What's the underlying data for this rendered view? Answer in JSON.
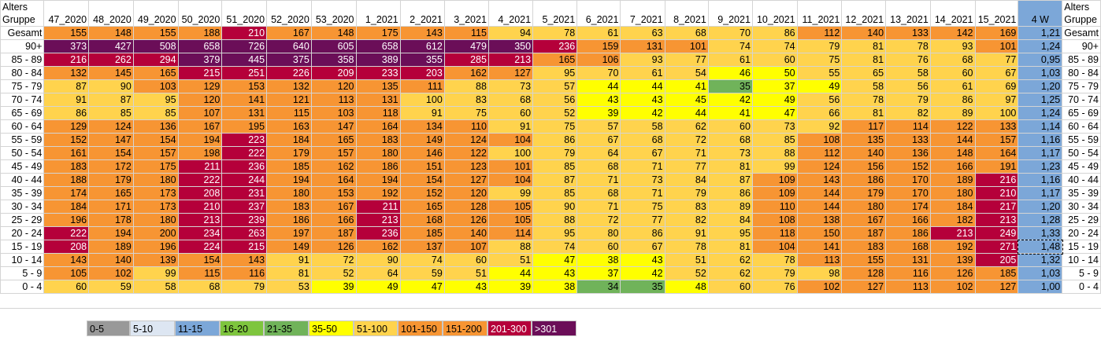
{
  "header_label": "Alters\nGruppe",
  "columns": [
    "2020_47",
    "2020_48",
    "2020_49",
    "2020_50",
    "2020_51",
    "2020_52",
    "2020_53",
    "2021_1",
    "2021_2",
    "2021_3",
    "2021_4",
    "2021_5",
    "2021_6",
    "2021_7",
    "2021_8",
    "2021_9",
    "2021_10",
    "2021_11",
    "2021_12",
    "2021_13",
    "2021_14",
    "2021_15"
  ],
  "four_week_label": "4 W",
  "rows": [
    {
      "label": "Gesamt",
      "values": [
        155,
        148,
        155,
        188,
        210,
        167,
        148,
        175,
        143,
        115,
        94,
        78,
        61,
        63,
        68,
        70,
        86,
        112,
        140,
        133,
        142,
        169
      ],
      "fw": "1,21"
    },
    {
      "label": "90+",
      "values": [
        373,
        427,
        508,
        658,
        726,
        640,
        605,
        658,
        612,
        479,
        350,
        236,
        159,
        131,
        101,
        74,
        74,
        79,
        81,
        78,
        93,
        101
      ],
      "fw": "1,24"
    },
    {
      "label": "85 - 89",
      "values": [
        216,
        262,
        294,
        379,
        445,
        375,
        358,
        389,
        355,
        285,
        213,
        165,
        106,
        93,
        77,
        61,
        60,
        75,
        81,
        76,
        68,
        77
      ],
      "fw": "0,95"
    },
    {
      "label": "80 - 84",
      "values": [
        132,
        145,
        165,
        215,
        251,
        226,
        209,
        233,
        203,
        162,
        127,
        95,
        70,
        61,
        54,
        46,
        50,
        55,
        65,
        58,
        60,
        67
      ],
      "fw": "1,03"
    },
    {
      "label": "75 - 79",
      "values": [
        87,
        90,
        103,
        129,
        153,
        132,
        120,
        135,
        111,
        88,
        73,
        57,
        44,
        44,
        41,
        35,
        37,
        49,
        58,
        56,
        61,
        69
      ],
      "fw": "1,20"
    },
    {
      "label": "70 - 74",
      "values": [
        91,
        87,
        95,
        120,
        141,
        121,
        113,
        131,
        100,
        83,
        68,
        56,
        43,
        43,
        45,
        42,
        49,
        56,
        78,
        79,
        86,
        97
      ],
      "fw": "1,25"
    },
    {
      "label": "65 - 69",
      "values": [
        86,
        85,
        85,
        107,
        131,
        115,
        103,
        118,
        91,
        75,
        60,
        52,
        39,
        42,
        44,
        41,
        47,
        66,
        81,
        82,
        89,
        100
      ],
      "fw": "1,24"
    },
    {
      "label": "60 - 64",
      "values": [
        129,
        124,
        136,
        167,
        195,
        163,
        147,
        164,
        134,
        110,
        91,
        75,
        57,
        58,
        62,
        60,
        73,
        92,
        117,
        114,
        122,
        133
      ],
      "fw": "1,14"
    },
    {
      "label": "55 - 59",
      "values": [
        152,
        147,
        154,
        194,
        223,
        184,
        165,
        183,
        149,
        124,
        104,
        86,
        67,
        68,
        72,
        68,
        85,
        108,
        135,
        133,
        144,
        157
      ],
      "fw": "1,16"
    },
    {
      "label": "50 - 54",
      "values": [
        161,
        154,
        157,
        198,
        222,
        179,
        157,
        180,
        146,
        122,
        100,
        79,
        64,
        67,
        71,
        73,
        88,
        112,
        140,
        136,
        148,
        164
      ],
      "fw": "1,17"
    },
    {
      "label": "45 - 49",
      "values": [
        183,
        172,
        175,
        211,
        236,
        185,
        162,
        186,
        151,
        123,
        101,
        85,
        68,
        71,
        77,
        81,
        99,
        124,
        156,
        152,
        166,
        191
      ],
      "fw": "1,23"
    },
    {
      "label": "40 - 44",
      "values": [
        188,
        179,
        180,
        222,
        244,
        194,
        164,
        194,
        154,
        127,
        104,
        87,
        71,
        73,
        84,
        87,
        109,
        143,
        186,
        170,
        189,
        216
      ],
      "fw": "1,16"
    },
    {
      "label": "35 - 39",
      "values": [
        174,
        165,
        173,
        208,
        231,
        180,
        153,
        192,
        152,
        120,
        99,
        85,
        68,
        71,
        79,
        86,
        109,
        144,
        179,
        170,
        180,
        210
      ],
      "fw": "1,17"
    },
    {
      "label": "30 - 34",
      "values": [
        184,
        171,
        173,
        210,
        237,
        183,
        167,
        211,
        165,
        128,
        105,
        90,
        71,
        75,
        83,
        89,
        110,
        144,
        180,
        174,
        184,
        217
      ],
      "fw": "1,20"
    },
    {
      "label": "25 - 29",
      "values": [
        196,
        178,
        180,
        213,
        239,
        186,
        166,
        213,
        168,
        126,
        105,
        88,
        72,
        77,
        82,
        84,
        108,
        138,
        167,
        166,
        182,
        213
      ],
      "fw": "1,28"
    },
    {
      "label": "20 - 24",
      "values": [
        222,
        194,
        200,
        234,
        263,
        197,
        187,
        236,
        185,
        140,
        114,
        95,
        80,
        86,
        91,
        95,
        118,
        150,
        187,
        186,
        213,
        249
      ],
      "fw": "1,33"
    },
    {
      "label": "15 - 19",
      "values": [
        208,
        189,
        196,
        224,
        215,
        149,
        126,
        162,
        137,
        107,
        88,
        74,
        60,
        67,
        78,
        81,
        104,
        141,
        183,
        168,
        192,
        271
      ],
      "fw": "1,48"
    },
    {
      "label": "10 - 14",
      "values": [
        143,
        140,
        139,
        154,
        143,
        91,
        72,
        90,
        74,
        60,
        51,
        47,
        38,
        43,
        51,
        62,
        78,
        113,
        155,
        131,
        139,
        205
      ],
      "fw": "1,32"
    },
    {
      "label": "5 - 9",
      "values": [
        105,
        102,
        99,
        115,
        116,
        81,
        52,
        64,
        59,
        51,
        44,
        43,
        37,
        42,
        52,
        62,
        79,
        98,
        128,
        116,
        126,
        185
      ],
      "fw": "1,03"
    },
    {
      "label": "0 - 4",
      "values": [
        60,
        59,
        58,
        68,
        79,
        53,
        39,
        49,
        47,
        43,
        39,
        38,
        34,
        35,
        48,
        60,
        76,
        102,
        127,
        113,
        102,
        127
      ],
      "fw": "1,00"
    }
  ],
  "legend": [
    {
      "label": "0-5",
      "color": "#999999"
    },
    {
      "label": "5-10",
      "color": "#dde6f2"
    },
    {
      "label": "11-15",
      "color": "#7ca7d8"
    },
    {
      "label": "16-20",
      "color": "#7ec53e"
    },
    {
      "label": "21-35",
      "color": "#70b35a"
    },
    {
      "label": "35-50",
      "color": "#ffff00"
    },
    {
      "label": "51-100",
      "color": "#ffd34d"
    },
    {
      "label": "101-150",
      "color": "#f79533"
    },
    {
      "label": "151-200",
      "color": "#f79533"
    },
    {
      "label": "201-300",
      "color": "#b5003a"
    },
    {
      "label": ">301",
      "color": "#6b0e58"
    }
  ]
}
